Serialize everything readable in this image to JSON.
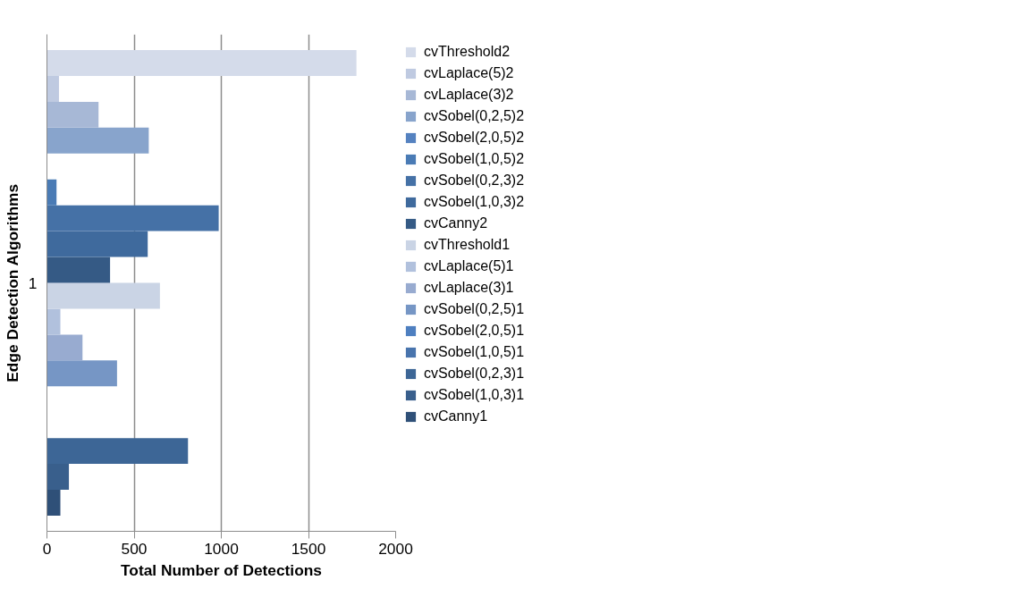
{
  "chart_data": {
    "type": "bar",
    "orientation": "horizontal",
    "xlabel": "Total Number of Detections",
    "ylabel": "Edge Detection Algorithms",
    "categories": [
      "1"
    ],
    "series": [
      {
        "name": "cvCanny1",
        "color": "#2f5078",
        "values": [
          77
        ]
      },
      {
        "name": "cvSobel(1,0,3)1",
        "color": "#395f8c",
        "values": [
          126
        ]
      },
      {
        "name": "cvSobel(0,2,3)1",
        "color": "#3d6696",
        "values": [
          809
        ]
      },
      {
        "name": "cvSobel(1,0,5)1",
        "color": "#4874ad",
        "values": [
          0
        ]
      },
      {
        "name": "cvSobel(2,0,5)1",
        "color": "#4e7fc0",
        "values": [
          0
        ]
      },
      {
        "name": "cvSobel(0,2,5)1",
        "color": "#7696c5",
        "values": [
          402
        ]
      },
      {
        "name": "cvLaplace(3)1",
        "color": "#98abd0",
        "values": [
          204
        ]
      },
      {
        "name": "cvLaplace(5)1",
        "color": "#b1c1dd",
        "values": [
          77
        ]
      },
      {
        "name": "cvThreshold1",
        "color": "#cad4e5",
        "values": [
          648
        ]
      },
      {
        "name": "cvCanny2",
        "color": "#355a85",
        "values": [
          362
        ]
      },
      {
        "name": "cvSobel(1,0,3)2",
        "color": "#3f6a9d",
        "values": [
          578
        ]
      },
      {
        "name": "cvSobel(0,2,3)2",
        "color": "#4571a6",
        "values": [
          985
        ]
      },
      {
        "name": "cvSobel(1,0,5)2",
        "color": "#4a7bb5",
        "values": [
          55
        ]
      },
      {
        "name": "cvSobel(2,0,5)2",
        "color": "#5582c0",
        "values": [
          0
        ]
      },
      {
        "name": "cvSobel(0,2,5)2",
        "color": "#88a4cc",
        "values": [
          584
        ]
      },
      {
        "name": "cvLaplace(3)2",
        "color": "#a7b8d6",
        "values": [
          296
        ]
      },
      {
        "name": "cvLaplace(5)2",
        "color": "#bfcae1",
        "values": [
          69
        ]
      },
      {
        "name": "cvThreshold2",
        "color": "#d4dbea",
        "values": [
          1775
        ]
      }
    ],
    "xlim": [
      0,
      2000
    ],
    "xticks": [
      0,
      500,
      1000,
      1500,
      2000
    ],
    "grid": "x",
    "legend": "right"
  }
}
